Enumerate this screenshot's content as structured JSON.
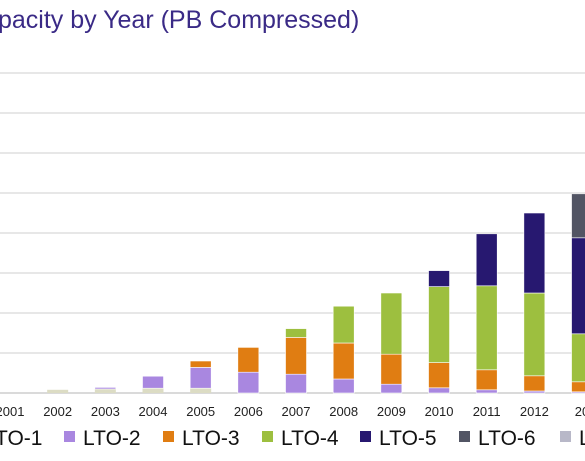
{
  "chart_data": {
    "type": "bar",
    "stacked": true,
    "title": "pacity by Year (PB Compressed)",
    "categories": [
      "2001",
      "2002",
      "2003",
      "2004",
      "2005",
      "2006",
      "2007",
      "2008",
      "2009",
      "2010",
      "2011",
      "2012",
      "20"
    ],
    "series": [
      {
        "name": "TO-1",
        "color": "#c7c7e8",
        "values": [
          0,
          0,
          0,
          0,
          0,
          0,
          0,
          0,
          0,
          0,
          0,
          0,
          0
        ]
      },
      {
        "name": "LTO-2",
        "color": "#a987e0",
        "values": [
          0,
          0,
          0.4,
          3,
          5.2,
          5.2,
          4.7,
          3.5,
          2.2,
          1.3,
          0.8,
          0.5,
          0.3
        ]
      },
      {
        "name": "LTO-3",
        "color": "#e07d12",
        "values": [
          0,
          0,
          0,
          0,
          1.6,
          6.2,
          9.2,
          9,
          7.5,
          6.3,
          5,
          3.8,
          2.5
        ]
      },
      {
        "name": "LTO-4",
        "color": "#9dbf3f",
        "values": [
          0,
          0,
          0,
          0,
          0,
          0,
          2.2,
          9.2,
          15.3,
          19,
          21,
          20.7,
          12
        ]
      },
      {
        "name": "LTO-5",
        "color": "#271870",
        "values": [
          0,
          0,
          0,
          0,
          0,
          0,
          0,
          0,
          0,
          4,
          13,
          20,
          24
        ]
      },
      {
        "name": "LTO-6",
        "color": "#525564",
        "values": [
          0,
          0,
          0,
          0,
          0,
          0,
          0,
          0,
          0,
          0,
          0,
          0,
          11
        ]
      },
      {
        "name": "L",
        "color": "#b8b8c8",
        "values": [
          0,
          0,
          0,
          0,
          0,
          0,
          0,
          0,
          0,
          0,
          0,
          0,
          0
        ]
      }
    ],
    "minor_base": [
      0,
      0.8,
      1,
      1.2,
      1.2,
      0,
      0,
      0,
      0,
      0,
      0,
      0,
      0
    ],
    "ylim": [
      0,
      80
    ],
    "grid": true,
    "legend_position": "bottom"
  }
}
